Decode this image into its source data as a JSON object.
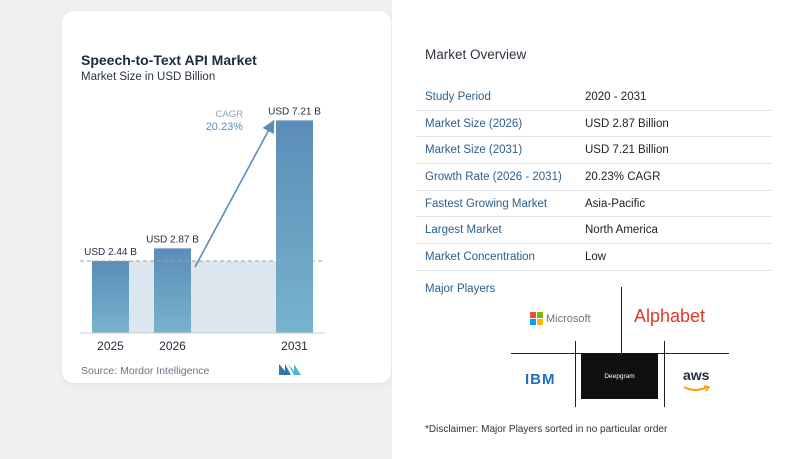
{
  "chart_data": {
    "type": "bar",
    "title": "Speech-to-Text API Market",
    "subtitle": "Market Size in USD Billion",
    "categories": [
      "2025",
      "2026",
      "2031"
    ],
    "values": [
      2.44,
      2.87,
      7.21
    ],
    "data_labels": [
      "USD 2.44 B",
      "USD 2.87 B",
      "USD 7.21 B"
    ],
    "cagr_label": "CAGR",
    "cagr_value": "20.23%",
    "bar_color": "#5a8db7",
    "ylim": [
      0,
      7.8
    ]
  },
  "source": "Source: Mordor Intelligence",
  "overview": {
    "title": "Market Overview",
    "rows": [
      {
        "label": "Study Period",
        "value": "2020 - 2031"
      },
      {
        "label": "Market Size (2026)",
        "value": "USD 2.87 Billion"
      },
      {
        "label": "Market Size (2031)",
        "value": "USD 7.21 Billion"
      },
      {
        "label": "Growth Rate (2026 - 2031)",
        "value": "20.23% CAGR"
      },
      {
        "label": "Fastest Growing Market",
        "value": "Asia-Pacific"
      },
      {
        "label": "Largest Market",
        "value": "North America"
      },
      {
        "label": "Market Concentration",
        "value": "Low"
      }
    ]
  },
  "players": {
    "title": "Major Players",
    "microsoft": "Microsoft",
    "alphabet": "Alphabet",
    "ibm": "IBM",
    "deepgram": "Deepgram",
    "aws": "aws"
  },
  "disclaimer": "*Disclaimer: Major Players sorted in no particular order"
}
